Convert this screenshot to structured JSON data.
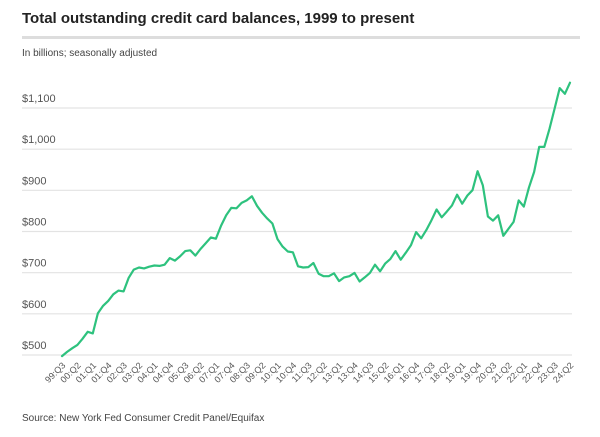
{
  "chart_data": {
    "type": "line",
    "title": "Total outstanding credit card balances, 1999 to present",
    "subtitle": "In billions; seasonally adjusted",
    "source": "Source: New York Fed Consumer Credit Panel/Equifax",
    "xlabel": "",
    "ylabel": "",
    "ylim": [
      500,
      1100
    ],
    "yticks": [
      500,
      600,
      700,
      800,
      900,
      1000,
      1100
    ],
    "ytick_labels": [
      "$500",
      "$600",
      "$700",
      "$800",
      "$900",
      "$1,000",
      "$1,100"
    ],
    "xtick_labels": [
      "99:Q3",
      "00:Q2",
      "01:Q1",
      "01:Q4",
      "02:Q3",
      "03:Q2",
      "04:Q1",
      "04:Q4",
      "05:Q3",
      "06:Q2",
      "07:Q1",
      "07:Q4",
      "08:Q3",
      "09:Q2",
      "10:Q1",
      "10:Q4",
      "11:Q3",
      "12:Q2",
      "13:Q1",
      "13:Q4",
      "14:Q3",
      "15:Q2",
      "16:Q1",
      "16:Q4",
      "17:Q3",
      "18:Q2",
      "19:Q1",
      "19:Q4",
      "20:Q3",
      "21:Q2",
      "22:Q1",
      "22:Q4",
      "23:Q3",
      "24:Q2"
    ],
    "xtick_every_n_quarters": 3,
    "grid": true,
    "line_color": "#2ec27e",
    "series": [
      {
        "name": "Credit card balances",
        "values": [
          478,
          488,
          497,
          505,
          520,
          537,
          533,
          582,
          600,
          612,
          628,
          637,
          635,
          668,
          688,
          693,
          691,
          695,
          698,
          697,
          700,
          716,
          710,
          720,
          733,
          735,
          722,
          738,
          752,
          766,
          763,
          795,
          820,
          838,
          837,
          850,
          856,
          866,
          843,
          826,
          812,
          800,
          762,
          744,
          732,
          730,
          696,
          693,
          694,
          704,
          678,
          672,
          672,
          679,
          660,
          669,
          672,
          680,
          659,
          669,
          680,
          700,
          684,
          703,
          714,
          733,
          712,
          729,
          747,
          779,
          764,
          784,
          808,
          834,
          815,
          829,
          844,
          870,
          848,
          868,
          881,
          927,
          893,
          817,
          807,
          820,
          770,
          787,
          804,
          856,
          841,
          887,
          925,
          986,
          986,
          1030,
          1079,
          1129,
          1115,
          1142
        ]
      }
    ]
  }
}
